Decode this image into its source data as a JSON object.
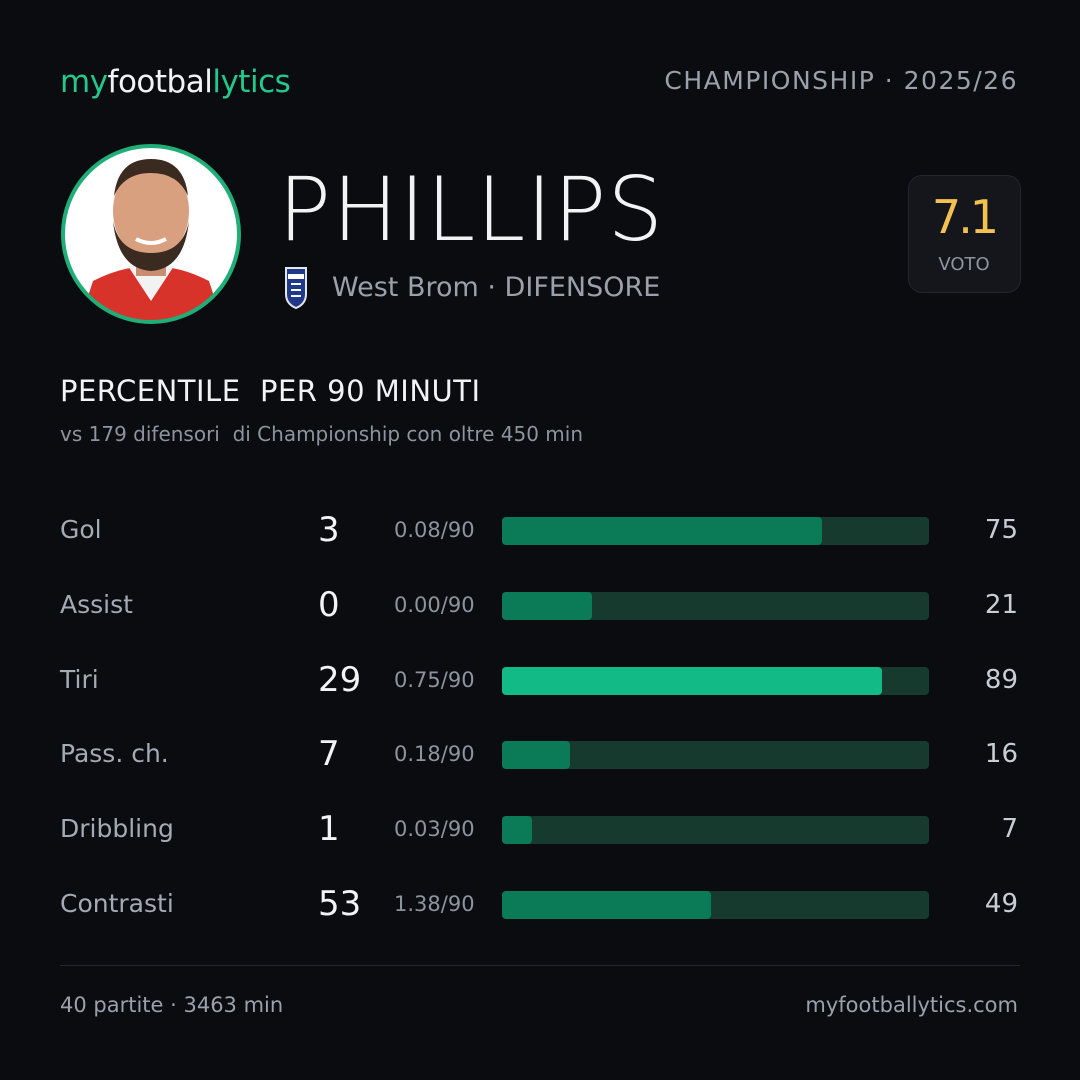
{
  "header": {
    "brand": [
      "my",
      "footbal",
      "lytics"
    ],
    "competition": "CHAMPIONSHIP · 2025/26"
  },
  "player": {
    "name": "PHILLIPS",
    "team_role": "West Brom · DIFENSORE",
    "rating": 7.1,
    "rating_label": "VOTO"
  },
  "section": {
    "title": "PERCENTILE  PER 90 MINUTI",
    "subtitle": "vs 179 difensori  di Championship con oltre 450 min"
  },
  "stats": {
    "track_color": "#163a2d",
    "rows": [
      {
        "label": "Gol",
        "total": 3,
        "per90": "0.08/90",
        "percentile": 75,
        "color": "#0b7a57"
      },
      {
        "label": "Assist",
        "total": 0,
        "per90": "0.00/90",
        "percentile": 21,
        "color": "#0b7a57"
      },
      {
        "label": "Tiri",
        "total": 29,
        "per90": "0.75/90",
        "percentile": 89,
        "color": "#12bb85"
      },
      {
        "label": "Pass. ch.",
        "total": 7,
        "per90": "0.18/90",
        "percentile": 16,
        "color": "#0b7a57"
      },
      {
        "label": "Dribbling",
        "total": 1,
        "per90": "0.03/90",
        "percentile": 7,
        "color": "#0b7a57"
      },
      {
        "label": "Contrasti",
        "total": 53,
        "per90": "1.38/90",
        "percentile": 49,
        "color": "#0b7a57"
      }
    ]
  },
  "footer": {
    "summary": "40 partite · 3463 min",
    "website": "myfootballytics.com"
  }
}
